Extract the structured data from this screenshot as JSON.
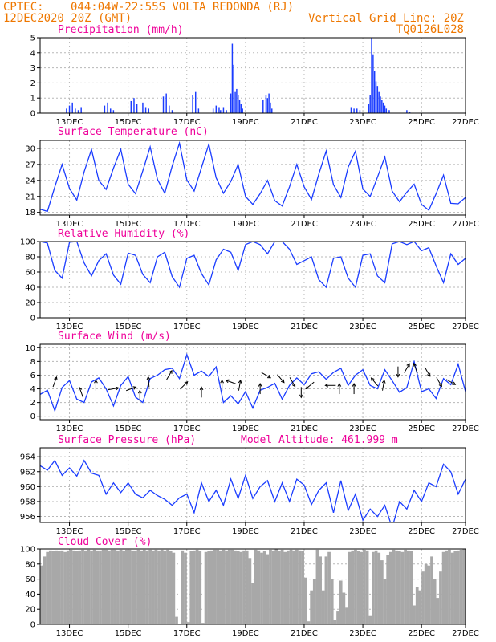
{
  "header": {
    "source": "CPTEC:",
    "location": "044:04W-22:55S   VOLTA REDONDA (RJ)",
    "run": "12DEC2020 20Z (GMT)",
    "grid_note": "Vertical Grid Line: 20Z",
    "code": "TQ0126L028"
  },
  "colors": {
    "header": "#ee7700",
    "title": "#ee0099",
    "series": "#1a3cff",
    "cloud": "#a8a8a8",
    "grid": "#b8b8b8",
    "arrow": "#000000"
  },
  "chart_data": [
    {
      "id": "precip",
      "type": "bar",
      "title": "Precipitation  (mm/h)",
      "ylabel": "mm/h",
      "xticks": [
        "13DEC",
        "15DEC",
        "17DEC",
        "19DEC",
        "21DEC",
        "23DEC",
        "25DEC",
        "27DEC"
      ],
      "xlim": [
        0,
        14.5
      ],
      "ylim": [
        0,
        5
      ],
      "yticks": [
        0,
        1,
        2,
        3,
        4,
        5
      ],
      "grid": true,
      "x": [
        0.9,
        1.0,
        1.1,
        1.2,
        1.3,
        1.4,
        2.2,
        2.3,
        2.4,
        2.5,
        3.1,
        3.2,
        3.3,
        3.5,
        3.6,
        3.7,
        4.2,
        4.3,
        4.4,
        4.5,
        5.2,
        5.3,
        5.4,
        5.9,
        6.0,
        6.1,
        6.15,
        6.25,
        6.35,
        6.5,
        6.55,
        6.6,
        6.65,
        6.7,
        6.75,
        6.8,
        6.85,
        6.9,
        7.6,
        7.7,
        7.75,
        7.8,
        7.85,
        7.9,
        10.6,
        10.7,
        10.8,
        10.9,
        11.2,
        11.25,
        11.3,
        11.35,
        11.4,
        11.45,
        11.5,
        11.55,
        11.6,
        11.65,
        11.7,
        11.75,
        11.8,
        11.9,
        12.5,
        12.6
      ],
      "values": [
        0.3,
        0.5,
        0.7,
        0.3,
        0.2,
        0.4,
        0.5,
        0.7,
        0.3,
        0.2,
        0.8,
        1.0,
        0.6,
        0.7,
        0.4,
        0.3,
        1.1,
        1.3,
        0.5,
        0.2,
        1.2,
        1.4,
        0.3,
        0.3,
        0.5,
        0.4,
        0.2,
        0.4,
        0.2,
        1.3,
        4.6,
        3.2,
        1.4,
        1.6,
        1.2,
        0.9,
        0.6,
        0.3,
        0.9,
        1.2,
        1.0,
        1.3,
        0.7,
        0.3,
        0.4,
        0.3,
        0.3,
        0.2,
        0.6,
        1.2,
        5.0,
        3.9,
        2.8,
        2.1,
        1.8,
        1.4,
        1.1,
        0.9,
        0.7,
        0.5,
        0.3,
        0.2,
        0.2,
        0.1
      ]
    },
    {
      "id": "temp",
      "type": "line",
      "title": "Surface Temperature (nC)",
      "ylabel": "nC",
      "xticks": [
        "13DEC",
        "15DEC",
        "17DEC",
        "19DEC",
        "21DEC",
        "23DEC",
        "25DEC",
        "27DEC"
      ],
      "xlim": [
        0,
        14.5
      ],
      "ylim": [
        17.5,
        31.5
      ],
      "yticks": [
        18,
        21,
        24,
        27,
        30
      ],
      "grid": true,
      "x": [
        0.0,
        0.25,
        0.5,
        0.75,
        1.0,
        1.25,
        1.5,
        1.75,
        2.0,
        2.25,
        2.5,
        2.75,
        3.0,
        3.25,
        3.5,
        3.75,
        4.0,
        4.25,
        4.5,
        4.75,
        5.0,
        5.25,
        5.5,
        5.75,
        6.0,
        6.25,
        6.5,
        6.75,
        7.0,
        7.25,
        7.5,
        7.75,
        8.0,
        8.25,
        8.5,
        8.75,
        9.0,
        9.25,
        9.5,
        9.75,
        10.0,
        10.25,
        10.5,
        10.75,
        11.0,
        11.25,
        11.5,
        11.75,
        12.0,
        12.25,
        12.5,
        12.75,
        13.0,
        13.25,
        13.5,
        13.75,
        14.0,
        14.25,
        14.5
      ],
      "values": [
        18.6,
        18.2,
        22.8,
        27.0,
        22.5,
        20.3,
        25.6,
        29.8,
        24.0,
        22.3,
        26.3,
        29.8,
        23.3,
        21.5,
        25.8,
        30.3,
        24.2,
        21.6,
        26.7,
        31.0,
        24.1,
        22.0,
        26.4,
        30.8,
        24.5,
        21.6,
        23.8,
        27.0,
        21.0,
        19.5,
        21.5,
        24.0,
        20.2,
        19.2,
        22.8,
        27.0,
        22.8,
        20.4,
        25.2,
        29.5,
        23.2,
        20.8,
        26.5,
        29.5,
        22.4,
        21.0,
        24.6,
        28.4,
        22.0,
        20.0,
        21.8,
        23.3,
        19.5,
        18.4,
        21.5,
        25.0,
        19.7,
        19.6,
        20.8
      ]
    },
    {
      "id": "rh",
      "type": "line",
      "title": "Relative Humidity (%)",
      "ylabel": "%",
      "xticks": [
        "13DEC",
        "15DEC",
        "17DEC",
        "19DEC",
        "21DEC",
        "23DEC",
        "25DEC",
        "27DEC"
      ],
      "xlim": [
        0,
        14.5
      ],
      "ylim": [
        0,
        100
      ],
      "yticks": [
        0,
        20,
        40,
        60,
        80,
        100
      ],
      "grid": true,
      "x": [
        0.0,
        0.25,
        0.5,
        0.75,
        1.0,
        1.25,
        1.5,
        1.75,
        2.0,
        2.25,
        2.5,
        2.75,
        3.0,
        3.25,
        3.5,
        3.75,
        4.0,
        4.25,
        4.5,
        4.75,
        5.0,
        5.25,
        5.5,
        5.75,
        6.0,
        6.25,
        6.5,
        6.75,
        7.0,
        7.25,
        7.5,
        7.75,
        8.0,
        8.25,
        8.5,
        8.75,
        9.0,
        9.25,
        9.5,
        9.75,
        10.0,
        10.25,
        10.5,
        10.75,
        11.0,
        11.25,
        11.5,
        11.75,
        12.0,
        12.25,
        12.5,
        12.75,
        13.0,
        13.25,
        13.5,
        13.75,
        14.0,
        14.25,
        14.5
      ],
      "values": [
        100,
        98,
        62,
        52,
        99,
        100,
        72,
        55,
        75,
        84,
        56,
        44,
        85,
        82,
        57,
        46,
        80,
        86,
        54,
        40,
        78,
        82,
        58,
        43,
        76,
        90,
        86,
        62,
        96,
        100,
        96,
        84,
        100,
        100,
        90,
        70,
        75,
        80,
        50,
        40,
        78,
        80,
        52,
        40,
        82,
        84,
        55,
        46,
        97,
        100,
        96,
        100,
        88,
        92,
        68,
        46,
        84,
        70,
        78
      ]
    },
    {
      "id": "wind",
      "type": "line",
      "title": "Surface Wind  (m/s)",
      "ylabel": "m/s",
      "xticks": [
        "13DEC",
        "15DEC",
        "17DEC",
        "19DEC",
        "21DEC",
        "23DEC",
        "25DEC",
        "27DEC"
      ],
      "xlim": [
        0,
        14.5
      ],
      "ylim": [
        -0.5,
        10.5
      ],
      "yticks": [
        0,
        2,
        4,
        6,
        8,
        10
      ],
      "grid": true,
      "x": [
        0.0,
        0.25,
        0.5,
        0.75,
        1.0,
        1.25,
        1.5,
        1.75,
        2.0,
        2.25,
        2.5,
        2.75,
        3.0,
        3.25,
        3.5,
        3.75,
        4.0,
        4.25,
        4.5,
        4.75,
        5.0,
        5.25,
        5.5,
        5.75,
        6.0,
        6.25,
        6.5,
        6.75,
        7.0,
        7.25,
        7.5,
        7.75,
        8.0,
        8.25,
        8.5,
        8.75,
        9.0,
        9.25,
        9.5,
        9.75,
        10.0,
        10.25,
        10.5,
        10.75,
        11.0,
        11.25,
        11.5,
        11.75,
        12.0,
        12.25,
        12.5,
        12.75,
        13.0,
        13.25,
        13.5,
        13.75,
        14.0,
        14.25,
        14.5
      ],
      "values": [
        3.2,
        3.8,
        0.8,
        4.2,
        5.2,
        2.5,
        2.0,
        5.0,
        5.6,
        4.0,
        1.5,
        4.5,
        5.8,
        2.8,
        2.0,
        5.5,
        6.0,
        6.8,
        7.0,
        5.5,
        9.0,
        6.0,
        6.6,
        5.8,
        7.2,
        2.0,
        3.0,
        1.8,
        3.6,
        1.2,
        3.8,
        4.2,
        4.8,
        2.5,
        4.5,
        5.6,
        4.6,
        6.2,
        6.5,
        5.4,
        6.4,
        7.0,
        4.5,
        6.0,
        6.8,
        4.5,
        4.0,
        6.8,
        5.2,
        3.5,
        4.2,
        8.0,
        3.6,
        4.0,
        2.6,
        5.5,
        4.6,
        7.6,
        3.6
      ],
      "arrow_x": [
        0.5,
        1.4,
        1.9,
        2.5,
        3.1,
        3.4,
        3.7,
        4.4,
        4.9,
        5.5,
        6.2,
        6.5,
        6.8,
        7.5,
        7.7,
        8.2,
        8.6,
        8.9,
        9.2,
        9.9,
        10.2,
        10.7,
        11.4,
        11.7,
        12.2,
        12.5,
        12.8,
        13.2,
        13.6,
        14.0
      ],
      "arrow_speed": [
        5,
        3.5,
        4.5,
        4,
        4,
        3,
        5,
        6,
        4.5,
        3.5,
        4.5,
        5,
        4.5,
        4,
        6,
        5.5,
        5,
        3.5,
        4.5,
        4.5,
        4,
        4,
        5,
        4.5,
        6.5,
        7,
        7,
        6.5,
        5,
        5
      ],
      "arrow_dir": [
        20,
        340,
        0,
        80,
        70,
        0,
        355,
        30,
        45,
        0,
        0,
        290,
        10,
        0,
        120,
        140,
        150,
        180,
        230,
        270,
        0,
        0,
        320,
        10,
        180,
        30,
        340,
        150,
        150,
        120
      ]
    },
    {
      "id": "pres",
      "type": "line",
      "title": "Surface Pressure (hPa)",
      "ylabel": "hPa",
      "annotation": "Model Altitude: 461.999  m",
      "xticks": [
        "13DEC",
        "15DEC",
        "17DEC",
        "19DEC",
        "21DEC",
        "23DEC",
        "25DEC",
        "27DEC"
      ],
      "xlim": [
        0,
        14.5
      ],
      "ylim": [
        955.2,
        965.2
      ],
      "yticks": [
        956,
        958,
        960,
        962,
        964
      ],
      "grid": true,
      "x": [
        0.0,
        0.25,
        0.5,
        0.75,
        1.0,
        1.25,
        1.5,
        1.75,
        2.0,
        2.25,
        2.5,
        2.75,
        3.0,
        3.25,
        3.5,
        3.75,
        4.0,
        4.25,
        4.5,
        4.75,
        5.0,
        5.25,
        5.5,
        5.75,
        6.0,
        6.25,
        6.5,
        6.75,
        7.0,
        7.25,
        7.5,
        7.75,
        8.0,
        8.25,
        8.5,
        8.75,
        9.0,
        9.25,
        9.5,
        9.75,
        10.0,
        10.25,
        10.5,
        10.75,
        11.0,
        11.25,
        11.5,
        11.75,
        12.0,
        12.25,
        12.5,
        12.75,
        13.0,
        13.25,
        13.5,
        13.75,
        14.0,
        14.25,
        14.5
      ],
      "values": [
        962.8,
        962.2,
        963.5,
        961.5,
        962.5,
        961.4,
        963.5,
        961.8,
        961.5,
        959.0,
        960.5,
        959.2,
        960.5,
        959.0,
        958.5,
        959.5,
        958.8,
        958.3,
        957.5,
        958.5,
        959.0,
        956.5,
        960.5,
        958.0,
        959.5,
        957.5,
        961.0,
        958.4,
        961.5,
        958.4,
        960.0,
        960.8,
        958.0,
        960.5,
        958.0,
        961.0,
        960.2,
        957.6,
        959.5,
        960.5,
        956.5,
        960.8,
        956.8,
        959.0,
        955.5,
        957.0,
        956.0,
        957.5,
        954.5,
        958.0,
        957.0,
        959.5,
        958.0,
        960.5,
        960.0,
        963.0,
        962.0,
        959.0,
        961.0
      ]
    },
    {
      "id": "cloud",
      "type": "bar",
      "title": "Cloud Cover (%)",
      "ylabel": "%",
      "xticks": [
        "13DEC",
        "15DEC",
        "17DEC",
        "19DEC",
        "21DEC",
        "23DEC",
        "25DEC",
        "27DEC"
      ],
      "xlim": [
        0,
        14.5
      ],
      "ylim": [
        0,
        100
      ],
      "yticks": [
        0,
        20,
        40,
        60,
        80,
        100
      ],
      "grid": true,
      "x": [
        0.0,
        0.1,
        0.2,
        0.3,
        0.4,
        0.5,
        0.6,
        0.7,
        0.8,
        0.9,
        1.0,
        1.1,
        1.2,
        1.3,
        1.4,
        1.5,
        1.6,
        1.7,
        1.8,
        1.9,
        2.0,
        2.1,
        2.2,
        2.3,
        2.4,
        2.5,
        2.6,
        2.7,
        2.8,
        2.9,
        3.0,
        3.1,
        3.2,
        3.3,
        3.4,
        3.5,
        3.6,
        3.7,
        3.8,
        3.9,
        4.0,
        4.1,
        4.2,
        4.3,
        4.4,
        4.5,
        4.6,
        4.7,
        4.8,
        4.9,
        5.0,
        5.1,
        5.2,
        5.3,
        5.4,
        5.5,
        5.6,
        5.7,
        5.8,
        5.9,
        6.0,
        6.1,
        6.2,
        6.3,
        6.4,
        6.5,
        6.6,
        6.7,
        6.8,
        6.9,
        7.0,
        7.1,
        7.2,
        7.3,
        7.4,
        7.5,
        7.6,
        7.7,
        7.8,
        7.9,
        8.0,
        8.1,
        8.2,
        8.3,
        8.4,
        8.5,
        8.6,
        8.7,
        8.8,
        8.9,
        9.0,
        9.1,
        9.2,
        9.3,
        9.4,
        9.5,
        9.6,
        9.7,
        9.8,
        9.9,
        10.0,
        10.1,
        10.2,
        10.3,
        10.4,
        10.5,
        10.6,
        10.7,
        10.8,
        10.9,
        11.0,
        11.1,
        11.2,
        11.3,
        11.4,
        11.5,
        11.6,
        11.7,
        11.8,
        11.9,
        12.0,
        12.1,
        12.2,
        12.3,
        12.4,
        12.5,
        12.6,
        12.7,
        12.8,
        12.9,
        13.0,
        13.1,
        13.2,
        13.3,
        13.4,
        13.5,
        13.6,
        13.7,
        13.8,
        13.9,
        14.0,
        14.1,
        14.2,
        14.3,
        14.4
      ],
      "values": [
        78,
        90,
        96,
        98,
        97,
        98,
        97,
        98,
        96,
        98,
        99,
        98,
        97,
        98,
        99,
        98,
        99,
        98,
        99,
        98,
        98,
        99,
        99,
        98,
        99,
        99,
        98,
        99,
        98,
        99,
        99,
        98,
        98,
        99,
        98,
        99,
        98,
        99,
        98,
        99,
        98,
        99,
        98,
        99,
        97,
        95,
        10,
        0,
        98,
        95,
        3,
        97,
        98,
        99,
        97,
        2,
        96,
        97,
        98,
        99,
        99,
        98,
        99,
        98,
        99,
        99,
        98,
        97,
        96,
        98,
        98,
        88,
        55,
        99,
        98,
        95,
        97,
        93,
        99,
        98,
        100,
        97,
        99,
        96,
        98,
        99,
        98,
        99,
        98,
        97,
        62,
        4,
        45,
        60,
        99,
        90,
        45,
        90,
        96,
        60,
        6,
        18,
        58,
        42,
        22,
        96,
        98,
        99,
        97,
        96,
        99,
        98,
        12,
        96,
        98,
        95,
        85,
        60,
        92,
        96,
        99,
        98,
        97,
        96,
        99,
        98,
        97,
        25,
        50,
        45,
        70,
        80,
        78,
        90,
        60,
        35,
        70,
        96,
        98,
        99,
        95,
        97,
        98,
        99,
        100
      ]
    }
  ]
}
